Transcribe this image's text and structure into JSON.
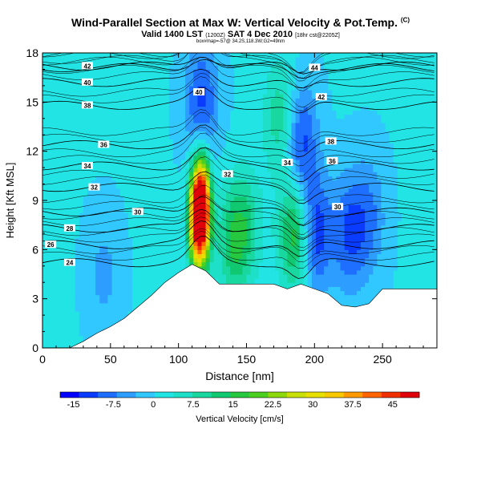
{
  "header": {
    "title": "Wind-Parallel Section at Max W: Vertical Velocity & Pot.Temp.",
    "title_mark": "(C)",
    "valid_prefix": "Valid 1400 LST",
    "valid_utc": "(1200Z)",
    "valid_date": "SAT 4 Dec 2010",
    "valid_suffix": "[18hr cst@2205Z]",
    "location": "box#map=-57@ 34.2S,118.3W;G2=49nm"
  },
  "colors": {
    "background_field": "#1fe0c8",
    "terrain": "#ffffff",
    "isentrope": "#000000",
    "updraft_max": "#e8000b",
    "downdraft_max": "#0b1fe0"
  },
  "chart_data": {
    "type": "heatmap",
    "xlabel": "Distance [nm]",
    "ylabel": "Height [Kft MSL]",
    "xlim": [
      0,
      290
    ],
    "ylim": [
      0,
      18
    ],
    "xticks": [
      0,
      50,
      100,
      150,
      200,
      250
    ],
    "yticks": [
      0,
      3,
      6,
      9,
      12,
      15,
      18
    ],
    "colorbar": {
      "label": "Vertical Velocity [cm/s]",
      "ticks": [
        -15,
        -7.5,
        0,
        7.5,
        15,
        22.5,
        30,
        37.5,
        45
      ],
      "range": [
        -17.5,
        50
      ],
      "colors": [
        "#0000ff",
        "#0a3cff",
        "#1e6eff",
        "#2d9eff",
        "#30c8ff",
        "#22e4e4",
        "#1ee0c8",
        "#18d8a0",
        "#10c870",
        "#26c840",
        "#4cd020",
        "#8cd80c",
        "#c8e008",
        "#e8e000",
        "#f8c800",
        "#ff9a00",
        "#ff6400",
        "#f03000",
        "#e0000a"
      ]
    },
    "terrain_kft": {
      "x": [
        0,
        10,
        20,
        30,
        40,
        50,
        60,
        70,
        80,
        90,
        100,
        110,
        120,
        130,
        140,
        150,
        160,
        170,
        180,
        190,
        200,
        210,
        220,
        230,
        240,
        250,
        260,
        270,
        280,
        290
      ],
      "y": [
        0,
        0,
        0,
        0.4,
        0.9,
        1.3,
        1.8,
        2.5,
        3.2,
        4.0,
        4.6,
        5.1,
        4.7,
        3.9,
        3.9,
        3.9,
        3.9,
        3.9,
        3.6,
        3.9,
        3.6,
        3.3,
        2.6,
        2.5,
        2.7,
        3.6,
        3.6,
        3.6,
        3.6,
        3.6
      ]
    },
    "vertical_velocity_features": [
      {
        "x": 118,
        "z": 8.5,
        "w": 48
      },
      {
        "x": 113,
        "z": 8.0,
        "w": 40
      },
      {
        "x": 140,
        "z": 6.5,
        "w": 12
      },
      {
        "x": 150,
        "z": 7.5,
        "w": 8
      },
      {
        "x": 186,
        "z": 7.0,
        "w": 18
      },
      {
        "x": 200,
        "z": 7.0,
        "w": -15
      },
      {
        "x": 225,
        "z": 7.0,
        "w": -11
      },
      {
        "x": 240,
        "z": 8.0,
        "w": -8
      },
      {
        "x": 117,
        "z": 15.0,
        "w": -12
      },
      {
        "x": 190,
        "z": 12.5,
        "w": -13
      },
      {
        "x": 45,
        "z": 4.5,
        "w": -5
      },
      {
        "x": 175,
        "z": 14.0,
        "w": 10
      }
    ],
    "isentropes_C": [
      {
        "label": "24",
        "label_x": 20,
        "label_z": 5.2
      },
      {
        "label": "26",
        "label_x": 6,
        "label_z": 6.3
      },
      {
        "label": "28",
        "label_x": 20,
        "label_z": 7.3
      },
      {
        "label": "30",
        "label_x": 70,
        "label_z": 8.3,
        "second_label_x": 217,
        "second_label_z": 8.6
      },
      {
        "label": "32",
        "label_x": 38,
        "label_z": 9.8,
        "second_label_x": 136,
        "second_label_z": 10.6
      },
      {
        "label": "34",
        "label_x": 33,
        "label_z": 11.1,
        "second_label_x": 180,
        "second_label_z": 11.3
      },
      {
        "label": "36",
        "label_x": 45,
        "label_z": 12.4,
        "second_label_x": 213,
        "second_label_z": 11.4
      },
      {
        "label": "38",
        "label_x": 33,
        "label_z": 14.8,
        "second_label_x": 212,
        "second_label_z": 12.6
      },
      {
        "label": "40",
        "label_x": 33,
        "label_z": 16.2,
        "second_label_x": 115,
        "second_label_z": 15.6
      },
      {
        "label": "42",
        "label_x": 33,
        "label_z": 17.2,
        "second_label_x": 205,
        "second_label_z": 15.3
      },
      {
        "label": "44",
        "label_x": 200,
        "label_z": 17.1
      }
    ],
    "extra_contour_labels": [
      "36",
      "38",
      "34",
      "36",
      "32",
      "30",
      "42",
      "40",
      "38",
      "34",
      "32"
    ]
  }
}
